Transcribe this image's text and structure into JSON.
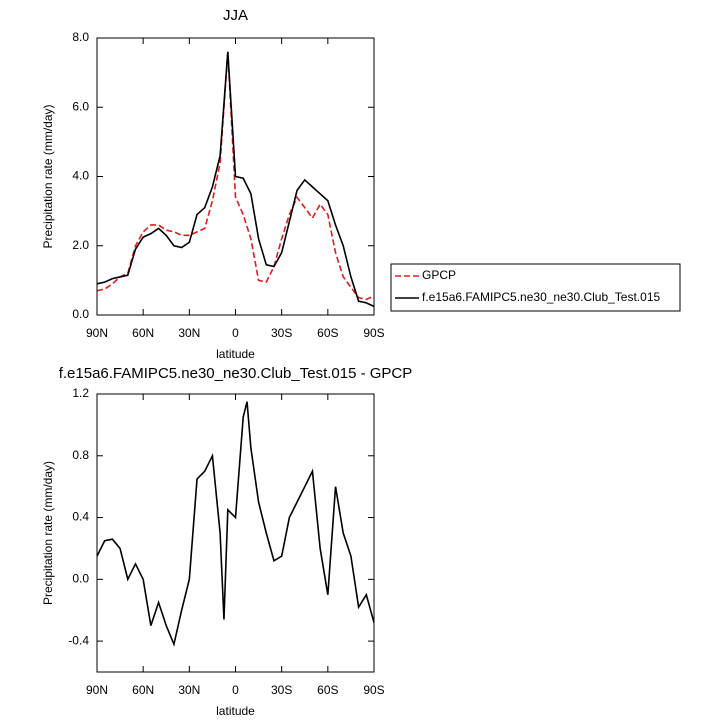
{
  "chart_data": [
    {
      "type": "line",
      "title": "JJA",
      "x_label": "latitude",
      "y_label": "Precipitation rate (mm/day)",
      "x": [
        90,
        85,
        80,
        75,
        70,
        65,
        60,
        55,
        50,
        45,
        40,
        35,
        30,
        25,
        20,
        15,
        10,
        5,
        0,
        -5,
        -10,
        -15,
        -20,
        -25,
        -30,
        -35,
        -40,
        -45,
        -50,
        -55,
        -60,
        -65,
        -70,
        -75,
        -80,
        -85,
        -90
      ],
      "series": [
        {
          "name": "GPCP",
          "color": "#e41a1c",
          "style": "dashed",
          "values": [
            0.7,
            0.75,
            0.9,
            1.1,
            1.2,
            2.0,
            2.4,
            2.6,
            2.6,
            2.45,
            2.4,
            2.3,
            2.3,
            2.4,
            2.5,
            3.3,
            4.4,
            7.6,
            3.4,
            2.9,
            2.2,
            1.0,
            0.95,
            1.4,
            2.2,
            2.9,
            3.4,
            3.1,
            2.8,
            3.2,
            2.9,
            1.8,
            1.1,
            0.8,
            0.5,
            0.45,
            0.55
          ]
        },
        {
          "name": "f.e15a6.FAMIPC5.ne30_ne30.Club_Test.015",
          "color": "#000000",
          "style": "solid",
          "values": [
            0.9,
            0.95,
            1.05,
            1.1,
            1.15,
            1.9,
            2.25,
            2.35,
            2.5,
            2.3,
            2.0,
            1.95,
            2.1,
            2.9,
            3.1,
            3.7,
            4.6,
            7.6,
            4.0,
            3.95,
            3.5,
            2.2,
            1.45,
            1.4,
            1.8,
            2.7,
            3.6,
            3.9,
            3.7,
            3.5,
            3.3,
            2.6,
            2.0,
            1.1,
            0.4,
            0.35,
            0.25
          ]
        }
      ],
      "xlim": [
        90,
        -90
      ],
      "xticks": [
        {
          "value": 90,
          "label": "90N"
        },
        {
          "value": 60,
          "label": "60N"
        },
        {
          "value": 30,
          "label": "30N"
        },
        0,
        {
          "value": -30,
          "label": "30S"
        },
        {
          "value": -60,
          "label": "60S"
        },
        {
          "value": -90,
          "label": "90S"
        }
      ],
      "ylim": [
        0,
        8
      ],
      "yticks": [
        {
          "value": 0,
          "label": "0.0"
        },
        {
          "value": 2,
          "label": "2.0"
        },
        {
          "value": 4,
          "label": "4.0"
        },
        {
          "value": 6,
          "label": "6.0"
        },
        {
          "value": 8,
          "label": "8.0"
        }
      ],
      "legend": "outside-right"
    },
    {
      "type": "line",
      "title": "f.e15a6.FAMIPC5.ne30_ne30.Club_Test.015 - GPCP",
      "x_label": "latitude",
      "y_label": "Precipitation rate (mm/day)",
      "x": [
        90,
        85,
        80,
        75,
        70,
        65,
        60,
        55,
        50,
        45,
        40,
        35,
        30,
        25,
        20,
        15,
        10,
        7.5,
        5,
        0,
        -5,
        -7.5,
        -10,
        -15,
        -20,
        -25,
        -30,
        -35,
        -40,
        -45,
        -50,
        -55,
        -60,
        -65,
        -70,
        -75,
        -80,
        -85,
        -90
      ],
      "series": [
        {
          "color": "#000000",
          "style": "solid",
          "values": [
            0.15,
            0.25,
            0.26,
            0.2,
            0.0,
            0.1,
            0.0,
            -0.3,
            -0.15,
            -0.3,
            -0.42,
            -0.2,
            0.0,
            0.65,
            0.7,
            0.8,
            0.3,
            -0.26,
            0.45,
            0.4,
            1.05,
            1.15,
            0.85,
            0.5,
            0.3,
            0.12,
            0.15,
            0.4,
            0.5,
            0.6,
            0.7,
            0.2,
            -0.1,
            0.6,
            0.3,
            0.15,
            -0.18,
            -0.1,
            -0.28
          ]
        }
      ],
      "xlim": [
        90,
        -90
      ],
      "xticks": [
        {
          "value": 90,
          "label": "90N"
        },
        {
          "value": 60,
          "label": "60N"
        },
        {
          "value": 30,
          "label": "30N"
        },
        0,
        {
          "value": -30,
          "label": "30S"
        },
        {
          "value": -60,
          "label": "60S"
        },
        {
          "value": -90,
          "label": "90S"
        }
      ],
      "ylim": [
        -0.6,
        1.2
      ],
      "yticks": [
        -0.4,
        {
          "value": 0,
          "label": "0.0"
        },
        0.4,
        0.8,
        1.2
      ]
    }
  ]
}
